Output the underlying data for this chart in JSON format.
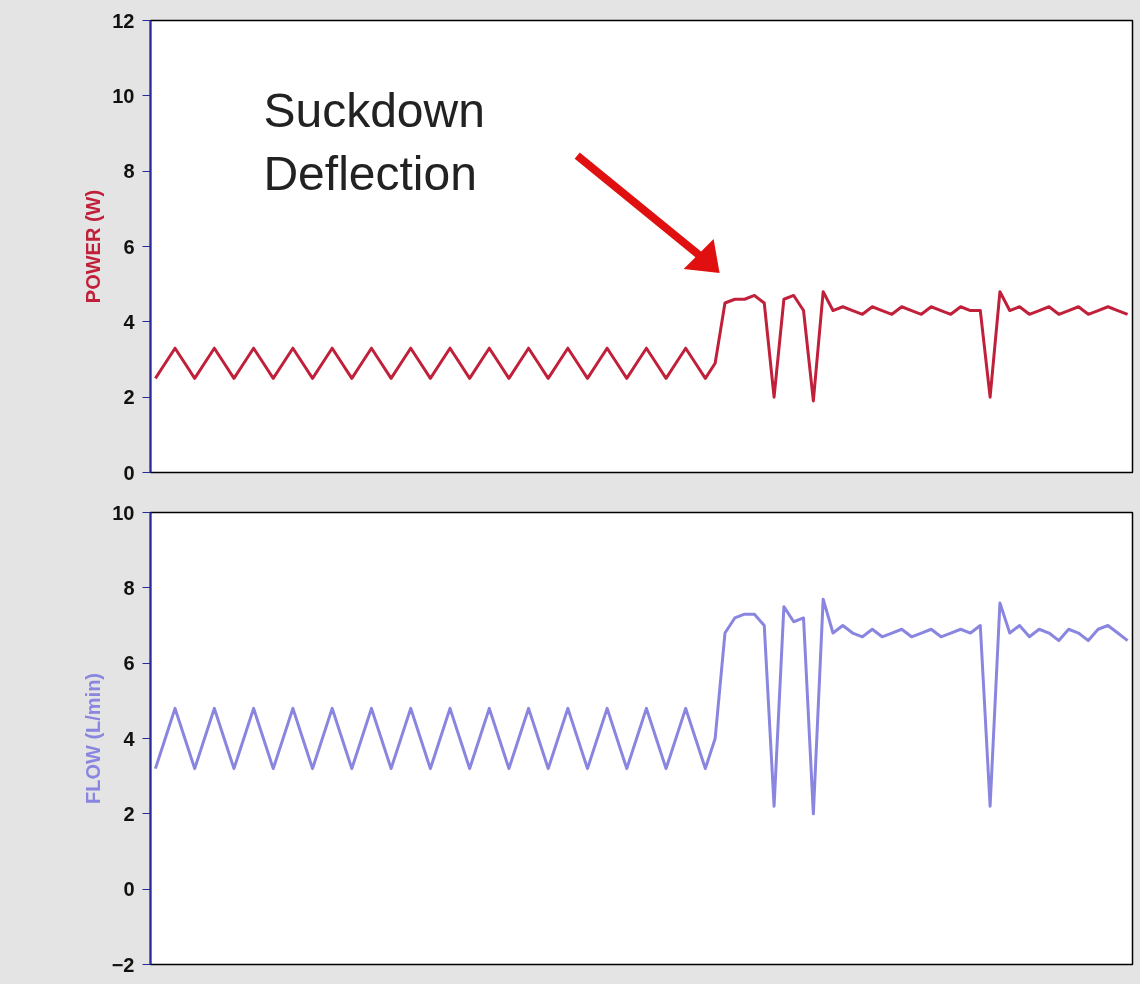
{
  "chart_data": [
    {
      "type": "line",
      "ylabel": "POWER (W)",
      "ylim": [
        0,
        12
      ],
      "yticks": [
        0,
        2,
        4,
        6,
        8,
        10,
        12
      ],
      "tick_labels": "y",
      "grid": false,
      "annotations": [
        "Suckdown\nDeflection"
      ],
      "categories": [
        null,
        null,
        null,
        null,
        null,
        null,
        null,
        null,
        null,
        null,
        null,
        null,
        null,
        null,
        null,
        null,
        null,
        null,
        null,
        null,
        null,
        null,
        null,
        null,
        null,
        null,
        null,
        null,
        null,
        null,
        null,
        null,
        null,
        null,
        null,
        null,
        null,
        null,
        null,
        null,
        null,
        null,
        null,
        null,
        null,
        null,
        null,
        null,
        null,
        null,
        null,
        null,
        null,
        null,
        null,
        null,
        null,
        null,
        null,
        null,
        null,
        null,
        null,
        null,
        null,
        null,
        null,
        null,
        null,
        null,
        null,
        null,
        null,
        null,
        null,
        null,
        null,
        null,
        null,
        null,
        null,
        null,
        null,
        null,
        null,
        null,
        null,
        null,
        null,
        null,
        null,
        null,
        null,
        null,
        null,
        null,
        null,
        null,
        null,
        null
      ],
      "series": [
        {
          "color": "#c0203a",
          "values": [
            2.5,
            2.9,
            3.3,
            2.9,
            2.5,
            2.9,
            3.3,
            2.9,
            2.5,
            2.9,
            3.3,
            2.9,
            2.5,
            2.9,
            3.3,
            2.9,
            2.5,
            2.9,
            3.3,
            2.9,
            2.5,
            2.9,
            3.3,
            2.9,
            2.5,
            2.9,
            3.3,
            2.9,
            2.5,
            2.9,
            3.3,
            2.9,
            2.5,
            2.9,
            3.3,
            2.9,
            2.5,
            2.9,
            3.3,
            2.9,
            2.5,
            2.9,
            3.3,
            2.9,
            2.5,
            2.9,
            3.3,
            2.9,
            2.5,
            2.9,
            3.3,
            2.9,
            2.5,
            2.9,
            3.3,
            2.9,
            2.5,
            2.9,
            4.5,
            4.6,
            4.6,
            4.7,
            4.5,
            2.0,
            4.6,
            4.7,
            4.3,
            1.9,
            4.8,
            4.3,
            4.4,
            4.3,
            4.2,
            4.4,
            4.3,
            4.2,
            4.4,
            4.3,
            4.2,
            4.4,
            4.3,
            4.2,
            4.4,
            4.3,
            4.3,
            2.0,
            4.8,
            4.3,
            4.4,
            4.2,
            4.3,
            4.4,
            4.2,
            4.3,
            4.4,
            4.2,
            4.3,
            4.4,
            4.3,
            4.2
          ]
        }
      ]
    },
    {
      "type": "line",
      "ylabel": "FLOW (L/min)",
      "ylim": [
        -2,
        10
      ],
      "yticks": [
        -2,
        0,
        2,
        4,
        6,
        8,
        10
      ],
      "tick_labels": "y",
      "grid": false,
      "categories": [
        null,
        null,
        null,
        null,
        null,
        null,
        null,
        null,
        null,
        null,
        null,
        null,
        null,
        null,
        null,
        null,
        null,
        null,
        null,
        null,
        null,
        null,
        null,
        null,
        null,
        null,
        null,
        null,
        null,
        null,
        null,
        null,
        null,
        null,
        null,
        null,
        null,
        null,
        null,
        null,
        null,
        null,
        null,
        null,
        null,
        null,
        null,
        null,
        null,
        null,
        null,
        null,
        null,
        null,
        null,
        null,
        null,
        null,
        null,
        null,
        null,
        null,
        null,
        null,
        null,
        null,
        null,
        null,
        null,
        null,
        null,
        null,
        null,
        null,
        null,
        null,
        null,
        null,
        null,
        null,
        null,
        null,
        null,
        null,
        null,
        null,
        null,
        null,
        null,
        null,
        null,
        null,
        null,
        null,
        null,
        null,
        null,
        null,
        null,
        null
      ],
      "series": [
        {
          "color": "#8a86e0",
          "values": [
            3.2,
            4.0,
            4.8,
            4.0,
            3.2,
            4.0,
            4.8,
            4.0,
            3.2,
            4.0,
            4.8,
            4.0,
            3.2,
            4.0,
            4.8,
            4.0,
            3.2,
            4.0,
            4.8,
            4.0,
            3.2,
            4.0,
            4.8,
            4.0,
            3.2,
            4.0,
            4.8,
            4.0,
            3.2,
            4.0,
            4.8,
            4.0,
            3.2,
            4.0,
            4.8,
            4.0,
            3.2,
            4.0,
            4.8,
            4.0,
            3.2,
            4.0,
            4.8,
            4.0,
            3.2,
            4.0,
            4.8,
            4.0,
            3.2,
            4.0,
            4.8,
            4.0,
            3.2,
            4.0,
            4.8,
            4.0,
            3.2,
            4.0,
            6.8,
            7.2,
            7.3,
            7.3,
            7.0,
            2.2,
            7.5,
            7.1,
            7.2,
            2.0,
            7.7,
            6.8,
            7.0,
            6.8,
            6.7,
            6.9,
            6.7,
            6.8,
            6.9,
            6.7,
            6.8,
            6.9,
            6.7,
            6.8,
            6.9,
            6.8,
            7.0,
            2.2,
            7.6,
            6.8,
            7.0,
            6.7,
            6.9,
            6.8,
            6.6,
            6.9,
            6.8,
            6.6,
            6.9,
            7.0,
            6.8,
            6.6
          ]
        }
      ]
    }
  ]
}
